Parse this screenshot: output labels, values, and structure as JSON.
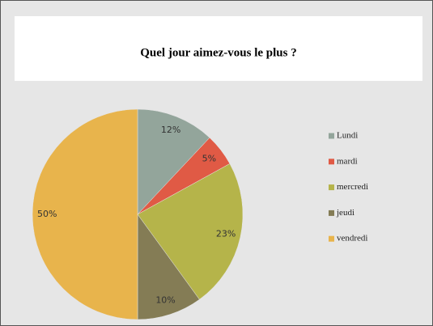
{
  "chart_data": {
    "type": "pie",
    "title": "Quel jour aimez-vous le plus ?",
    "categories": [
      "Lundi",
      "mardi",
      "mercredi",
      "jeudi",
      "vendredi"
    ],
    "values": [
      12,
      5,
      23,
      10,
      50
    ],
    "value_labels": [
      "12%",
      "5%",
      "23%",
      "10%",
      "50%"
    ],
    "colors": [
      "#93a59b",
      "#e05a45",
      "#b5b44a",
      "#847c55",
      "#e8b44c"
    ],
    "legend": "right"
  }
}
